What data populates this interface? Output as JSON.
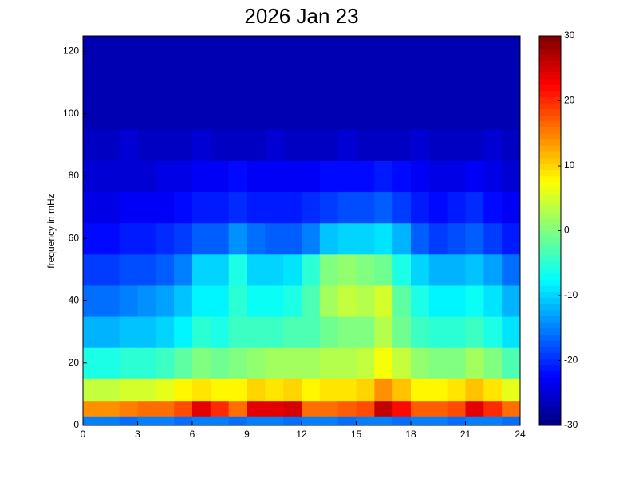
{
  "chart_data": {
    "type": "heatmap",
    "title": "2026 Jan 23",
    "ylabel": "frequency in mHz",
    "xbins": [
      0,
      1,
      2,
      3,
      4,
      5,
      6,
      7,
      8,
      9,
      10,
      11,
      12,
      13,
      14,
      15,
      16,
      17,
      18,
      19,
      20,
      21,
      22,
      23,
      24
    ],
    "ybins": [
      0,
      3,
      8,
      15,
      25,
      35,
      45,
      55,
      65,
      75,
      85,
      95,
      105,
      115,
      125
    ],
    "values": [
      [
        -15,
        -15,
        -16,
        -15,
        -15,
        -16,
        -15,
        -15,
        -16,
        -15,
        -15,
        -16,
        -15,
        -15,
        -16,
        -15,
        -15,
        -16,
        -15,
        -15,
        -16,
        -15,
        -15,
        -16
      ],
      [
        14,
        14,
        15,
        16,
        16,
        18,
        24,
        20,
        16,
        24,
        24,
        25,
        16,
        16,
        17,
        18,
        26,
        22,
        17,
        17,
        18,
        24,
        20,
        16
      ],
      [
        4,
        4,
        5,
        5,
        6,
        8,
        9,
        8,
        8,
        10,
        9,
        10,
        8,
        9,
        9,
        10,
        14,
        11,
        8,
        8,
        9,
        11,
        9,
        6
      ],
      [
        -6,
        -6,
        -5,
        -5,
        -4,
        -2,
        0,
        -1,
        0,
        1,
        2,
        2,
        2,
        3,
        3,
        4,
        7,
        4,
        1,
        0,
        0,
        2,
        0,
        -3
      ],
      [
        -12,
        -12,
        -11,
        -11,
        -10,
        -8,
        -5,
        -6,
        -4,
        -4,
        -4,
        -3,
        -3,
        -1,
        0,
        0,
        3,
        -1,
        -4,
        -5,
        -5,
        -4,
        -6,
        -9
      ],
      [
        -16,
        -16,
        -15,
        -14,
        -13,
        -11,
        -8,
        -8,
        -5,
        -7,
        -7,
        -6,
        -3,
        2,
        4,
        3,
        5,
        -2,
        -6,
        -8,
        -8,
        -7,
        -9,
        -12
      ],
      [
        -19,
        -19,
        -18,
        -18,
        -17,
        -15,
        -10,
        -10,
        -6,
        -10,
        -10,
        -9,
        -5,
        0,
        1,
        0,
        -1,
        -6,
        -10,
        -12,
        -12,
        -11,
        -13,
        -16
      ],
      [
        -22,
        -22,
        -21,
        -21,
        -20,
        -19,
        -17,
        -17,
        -14,
        -16,
        -17,
        -17,
        -15,
        -11,
        -10,
        -10,
        -9,
        -12,
        -17,
        -19,
        -18,
        -17,
        -19,
        -21
      ],
      [
        -24,
        -24,
        -23,
        -23,
        -23,
        -22,
        -21,
        -21,
        -20,
        -21,
        -21,
        -21,
        -20,
        -19,
        -18,
        -18,
        -17,
        -19,
        -21,
        -22,
        -21,
        -20,
        -22,
        -23
      ],
      [
        -25,
        -25,
        -25,
        -25,
        -24,
        -24,
        -23,
        -23,
        -22,
        -23,
        -23,
        -23,
        -23,
        -22,
        -22,
        -22,
        -21,
        -22,
        -23,
        -24,
        -24,
        -23,
        -24,
        -25
      ],
      [
        -26,
        -26,
        -25,
        -26,
        -26,
        -26,
        -25,
        -26,
        -26,
        -26,
        -25,
        -26,
        -26,
        -26,
        -25,
        -26,
        -26,
        -26,
        -25,
        -26,
        -26,
        -26,
        -25,
        -26
      ],
      [
        -27,
        -27,
        -27,
        -27,
        -27,
        -27,
        -27,
        -27,
        -27,
        -27,
        -27,
        -27,
        -27,
        -27,
        -27,
        -27,
        -27,
        -27,
        -27,
        -27,
        -27,
        -27,
        -27,
        -27
      ],
      [
        -27,
        -27,
        -27,
        -27,
        -27,
        -27,
        -27,
        -27,
        -27,
        -27,
        -27,
        -27,
        -27,
        -27,
        -27,
        -27,
        -27,
        -27,
        -27,
        -27,
        -27,
        -27,
        -27,
        -27
      ],
      [
        -27,
        -27,
        -27,
        -27,
        -27,
        -27,
        -27,
        -27,
        -27,
        -27,
        -27,
        -27,
        -27,
        -27,
        -27,
        -27,
        -27,
        -27,
        -27,
        -27,
        -27,
        -27,
        -27,
        -27
      ]
    ],
    "xlim": [
      0,
      24
    ],
    "xticks": [
      0,
      3,
      6,
      9,
      12,
      15,
      18,
      21,
      24
    ],
    "ylim": [
      0,
      125
    ],
    "yticks": [
      0,
      20,
      40,
      60,
      80,
      100,
      120
    ],
    "colormap": "jet",
    "clim": [
      -30,
      30
    ],
    "cticks": [
      -30,
      -20,
      -10,
      0,
      10,
      20,
      30
    ]
  }
}
